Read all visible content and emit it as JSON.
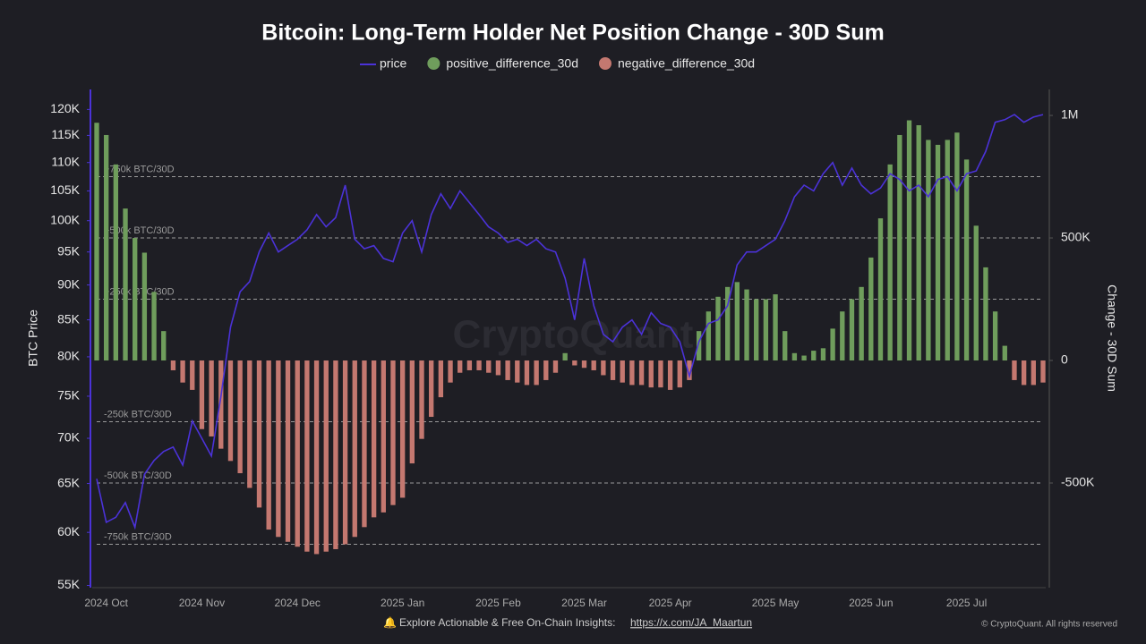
{
  "chart_data": {
    "type": "bar-line",
    "title": "Bitcoin: Long-Term Holder Net Position Change - 30D Sum",
    "y_label": "BTC Price",
    "y2_label": "Change - 30D Sum",
    "watermark": "CryptoQuant",
    "footer": {
      "text": "Explore Actionable & Free On-Chain Insights:",
      "link": "https://x.com/JA_Maartun",
      "copyright": "© CryptoQuant. All rights reserved"
    },
    "y_log": true,
    "ylim": [
      54800,
      124000
    ],
    "yticks": [
      {
        "value": 55000,
        "label": "55K"
      },
      {
        "value": 60000,
        "label": "60K"
      },
      {
        "value": 65000,
        "label": "65K"
      },
      {
        "value": 70000,
        "label": "70K"
      },
      {
        "value": 75000,
        "label": "75K"
      },
      {
        "value": 80000,
        "label": "80K"
      },
      {
        "value": 85000,
        "label": "85K"
      },
      {
        "value": 90000,
        "label": "90K"
      },
      {
        "value": 95000,
        "label": "95K"
      },
      {
        "value": 100000,
        "label": "100K"
      },
      {
        "value": 105000,
        "label": "105K"
      },
      {
        "value": 110000,
        "label": "110K"
      },
      {
        "value": 115000,
        "label": "115K"
      },
      {
        "value": 120000,
        "label": "120K"
      }
    ],
    "y2lim": [
      -927000,
      1106000
    ],
    "y2ticks": [
      {
        "value": -500000,
        "label": "-500K"
      },
      0,
      {
        "value": 500000,
        "label": "500K"
      },
      {
        "value": 1000000,
        "label": "1M"
      }
    ],
    "reference_lines": [
      {
        "value": 750000,
        "label": "+750k BTC/30D"
      },
      {
        "value": 500000,
        "label": "+500k BTC/30D"
      },
      {
        "value": 250000,
        "label": "+250k BTC/30D"
      },
      {
        "value": -250000,
        "label": "-250k BTC/30D"
      },
      {
        "value": -500000,
        "label": "-500k BTC/30D"
      },
      {
        "value": -750000,
        "label": "-750k BTC/30D"
      }
    ],
    "categories": [
      null,
      "2024 Oct",
      null,
      null,
      null,
      null,
      null,
      null,
      null,
      null,
      null,
      "2024 Nov",
      null,
      null,
      null,
      null,
      null,
      null,
      null,
      null,
      null,
      "2024 Dec",
      null,
      null,
      null,
      null,
      null,
      null,
      null,
      null,
      null,
      null,
      "2025 Jan",
      null,
      null,
      null,
      null,
      null,
      null,
      null,
      null,
      null,
      "2025 Feb",
      null,
      null,
      null,
      null,
      null,
      null,
      null,
      null,
      "2025 Mar",
      null,
      null,
      null,
      null,
      null,
      null,
      null,
      null,
      "2025 Apr",
      null,
      null,
      null,
      null,
      null,
      null,
      null,
      null,
      null,
      null,
      "2025 May",
      null,
      null,
      null,
      null,
      null,
      null,
      null,
      null,
      null,
      "2025 Jun",
      null,
      null,
      null,
      null,
      null,
      null,
      null,
      null,
      null,
      "2025 Jul",
      null,
      null,
      null,
      null,
      null,
      null,
      null,
      null
    ],
    "series": [
      {
        "name": "price",
        "kind": "line",
        "axis": "y",
        "color": "#4b32d8",
        "values": [
          65500,
          61000,
          61500,
          63000,
          60500,
          66000,
          67500,
          68500,
          69000,
          67000,
          72000,
          70000,
          68000,
          75000,
          84000,
          89000,
          90500,
          95000,
          98000,
          95000,
          96000,
          97000,
          98500,
          101000,
          99000,
          100500,
          106000,
          97000,
          95500,
          96000,
          94000,
          93500,
          98000,
          100000,
          95000,
          101000,
          104500,
          102000,
          105000,
          103000,
          101000,
          99000,
          98000,
          96500,
          97000,
          96000,
          97000,
          95500,
          95000,
          91000,
          85000,
          94000,
          87000,
          83000,
          82000,
          84000,
          85000,
          83000,
          86000,
          84500,
          84000,
          82000,
          77500,
          82000,
          84500,
          85000,
          87000,
          93000,
          95000,
          95000,
          96000,
          97000,
          100000,
          104000,
          106000,
          105000,
          108000,
          110000,
          106000,
          109000,
          106000,
          104500,
          105500,
          108000,
          107000,
          105000,
          106000,
          104000,
          107000,
          107500,
          105000,
          108000,
          108500,
          112000,
          117500,
          118000,
          119000,
          117500,
          118500,
          119000
        ]
      },
      {
        "name": "positive_difference_30d",
        "kind": "bar",
        "axis": "y2",
        "color": "#6f9d5c",
        "values": [
          970000,
          920000,
          800000,
          620000,
          500000,
          440000,
          280000,
          120000,
          null,
          null,
          null,
          null,
          null,
          null,
          null,
          null,
          null,
          null,
          null,
          null,
          null,
          null,
          null,
          null,
          null,
          null,
          null,
          null,
          null,
          null,
          null,
          null,
          null,
          null,
          null,
          null,
          null,
          null,
          null,
          null,
          null,
          null,
          null,
          null,
          null,
          null,
          null,
          null,
          null,
          30000,
          null,
          null,
          null,
          null,
          null,
          null,
          null,
          null,
          null,
          null,
          null,
          null,
          null,
          120000,
          200000,
          260000,
          300000,
          320000,
          290000,
          250000,
          250000,
          270000,
          120000,
          30000,
          20000,
          40000,
          50000,
          130000,
          200000,
          250000,
          300000,
          420000,
          580000,
          800000,
          920000,
          980000,
          960000,
          900000,
          880000,
          900000,
          930000,
          820000,
          550000,
          380000,
          200000,
          60000,
          null,
          null,
          null,
          null
        ]
      },
      {
        "name": "negative_difference_30d",
        "kind": "bar",
        "axis": "y2",
        "color": "#c47870",
        "values": [
          null,
          null,
          null,
          null,
          null,
          null,
          null,
          null,
          -40000,
          -90000,
          -120000,
          -280000,
          -310000,
          -360000,
          -410000,
          -460000,
          -520000,
          -600000,
          -690000,
          -720000,
          -740000,
          -760000,
          -780000,
          -790000,
          -780000,
          -770000,
          -750000,
          -720000,
          -680000,
          -640000,
          -620000,
          -590000,
          -560000,
          -420000,
          -320000,
          -230000,
          -150000,
          -90000,
          -50000,
          -40000,
          -40000,
          -50000,
          -60000,
          -80000,
          -90000,
          -100000,
          -100000,
          -80000,
          -50000,
          null,
          -20000,
          -30000,
          -40000,
          -60000,
          -80000,
          -90000,
          -100000,
          -100000,
          -110000,
          -110000,
          -120000,
          -110000,
          -80000,
          null,
          null,
          null,
          null,
          null,
          null,
          null,
          null,
          null,
          null,
          null,
          null,
          null,
          null,
          null,
          null,
          null,
          null,
          null,
          null,
          null,
          null,
          null,
          null,
          null,
          null,
          null,
          null,
          null,
          null,
          null,
          null,
          null,
          -80000,
          -100000,
          -100000,
          -90000
        ]
      }
    ]
  }
}
